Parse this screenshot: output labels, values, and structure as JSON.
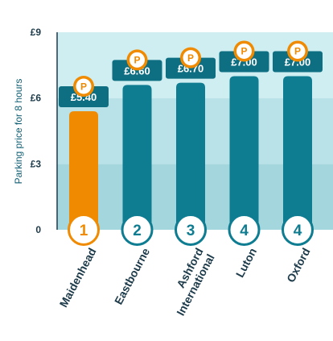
{
  "chart_data": {
    "type": "bar",
    "ylabel": "Parking price for 8 hours",
    "ylim": [
      0,
      9
    ],
    "yticks": [
      {
        "value": 0,
        "label": "0"
      },
      {
        "value": 3,
        "label": "£3"
      },
      {
        "value": 6,
        "label": "£6"
      },
      {
        "value": 9,
        "label": "£9"
      }
    ],
    "categories": [
      [
        "Maidenhead"
      ],
      [
        "Eastbourne"
      ],
      [
        "Ashford",
        "International"
      ],
      [
        "Luton"
      ],
      [
        "Oxford"
      ]
    ],
    "values": [
      5.4,
      6.6,
      6.7,
      7.0,
      7.0
    ],
    "value_labels": [
      "£5.40",
      "£6.60",
      "£6.70",
      "£7.00",
      "£7.00"
    ],
    "ranks": [
      "1",
      "2",
      "3",
      "4",
      "4"
    ],
    "highlight_index": 0,
    "colors": {
      "bar": "#0e7c91",
      "highlight": "#f08a00",
      "label_box": "#0e6e82",
      "band_dark": "#a4d6de",
      "band_mid": "#b9e2e8",
      "band_light": "#cfeef2",
      "text": "#1d3b4a"
    },
    "icon": "parking-icon"
  }
}
